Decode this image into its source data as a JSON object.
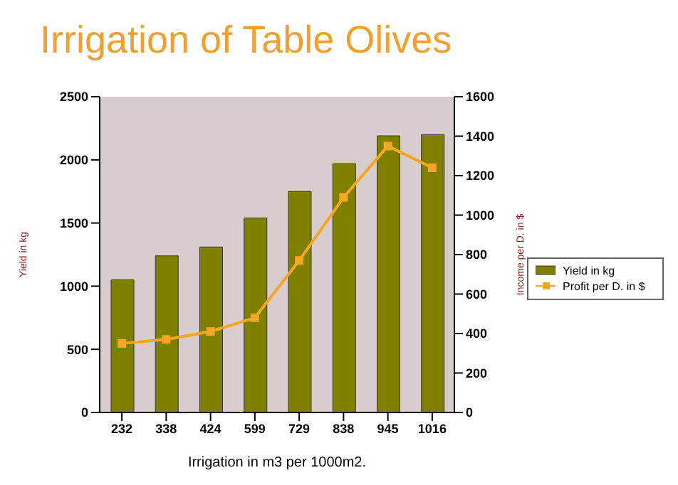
{
  "chart_data": {
    "type": "bar",
    "title": "Irrigation of Table Olives",
    "xlabel": "Irrigation in m3 per 1000m2.",
    "ylabel": "Yield in kg",
    "y2label": "Income per D. in $",
    "categories": [
      "232",
      "338",
      "424",
      "599",
      "729",
      "838",
      "945",
      "1016"
    ],
    "series": [
      {
        "name": "Yield in kg",
        "color": "#808000",
        "values": [
          1050,
          1240,
          1310,
          1540,
          1750,
          1970,
          2190,
          2200
        ]
      },
      {
        "name": "Profit per D. in $",
        "type": "line",
        "axis": "y2",
        "color": "#f5a623",
        "values": [
          350,
          370,
          410,
          480,
          770,
          1090,
          1350,
          1240
        ]
      }
    ],
    "ylim": [
      0,
      2500
    ],
    "yticks": [
      0,
      500,
      1000,
      1500,
      2000,
      2500
    ],
    "y2lim": [
      0,
      1600
    ],
    "y2ticks": [
      0,
      200,
      400,
      600,
      800,
      1000,
      1200,
      1400,
      1600
    ],
    "grid": false,
    "legend": "right",
    "marker": "square"
  }
}
